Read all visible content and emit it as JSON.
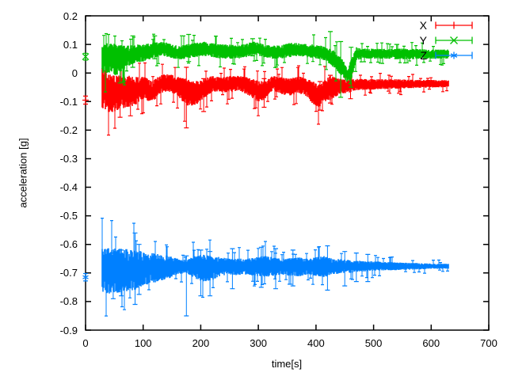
{
  "window": {
    "background": "#ffffff"
  },
  "chart_data": {
    "type": "scatter",
    "style": "points with errorbars",
    "title": "",
    "xlabel": "time[s]",
    "ylabel": "acceleration [g]",
    "xlim": [
      0,
      700
    ],
    "ylim": [
      -0.9,
      0.2
    ],
    "grid": false,
    "legend_position": "top-right-inside",
    "xticks": [
      0,
      100,
      200,
      300,
      400,
      500,
      600,
      700
    ],
    "xtick_labels": [
      "0",
      "100",
      "200",
      "300",
      "400",
      "500",
      "600",
      "700"
    ],
    "yticks": [
      0.2,
      0.1,
      0,
      -0.1,
      -0.2,
      -0.3,
      -0.4,
      -0.5,
      -0.6,
      -0.7,
      -0.8,
      -0.9
    ],
    "ytick_labels": [
      "0.2",
      "0.1",
      "0",
      "-0.1",
      "-0.2",
      "-0.3",
      "-0.4",
      "-0.5",
      "-0.6",
      "-0.7",
      "-0.8",
      "-0.9"
    ],
    "legend": {
      "entries": [
        {
          "label": "X",
          "color": "#ff0000",
          "marker": "plus"
        },
        {
          "label": "Y",
          "color": "#00c000",
          "marker": "cross"
        },
        {
          "label": "Z",
          "color": "#0080ff",
          "marker": "asterisk"
        }
      ]
    },
    "series": [
      {
        "name": "X",
        "color": "#ff0000",
        "marker": "plus",
        "initial_point": {
          "t": 0,
          "v": -0.095,
          "err": 0.014
        },
        "band": [
          [
            28,
            -0.125,
            0.02
          ],
          [
            40,
            -0.14,
            -0.005
          ],
          [
            55,
            -0.135,
            -0.01
          ],
          [
            70,
            -0.12,
            -0.005
          ],
          [
            85,
            -0.115,
            -0.015
          ],
          [
            100,
            -0.09,
            -0.01
          ],
          [
            115,
            -0.105,
            -0.03
          ],
          [
            130,
            -0.07,
            -0.005
          ],
          [
            145,
            -0.065,
            -0.005
          ],
          [
            160,
            -0.08,
            -0.01
          ],
          [
            175,
            -0.115,
            -0.02
          ],
          [
            190,
            -0.115,
            -0.03
          ],
          [
            205,
            -0.09,
            -0.02
          ],
          [
            220,
            -0.065,
            -0.01
          ],
          [
            235,
            -0.065,
            -0.015
          ],
          [
            250,
            -0.07,
            -0.01
          ],
          [
            265,
            -0.06,
            -0.01
          ],
          [
            280,
            -0.075,
            -0.015
          ],
          [
            298,
            -0.1,
            -0.025
          ],
          [
            310,
            -0.095,
            -0.03
          ],
          [
            325,
            -0.06,
            -0.01
          ],
          [
            340,
            -0.075,
            -0.015
          ],
          [
            355,
            -0.08,
            -0.02
          ],
          [
            370,
            -0.07,
            -0.01
          ],
          [
            385,
            -0.085,
            -0.02
          ],
          [
            395,
            -0.11,
            -0.03
          ],
          [
            405,
            -0.125,
            -0.04
          ],
          [
            415,
            -0.1,
            -0.025
          ],
          [
            425,
            -0.095,
            -0.01
          ],
          [
            440,
            -0.075,
            -0.02
          ],
          [
            455,
            -0.07,
            -0.025
          ],
          [
            470,
            -0.06,
            -0.02
          ],
          [
            500,
            -0.058,
            -0.022
          ],
          [
            540,
            -0.055,
            -0.022
          ],
          [
            580,
            -0.052,
            -0.024
          ],
          [
            630,
            -0.05,
            -0.025
          ]
        ],
        "spikes": [
          [
            60,
            -0.155,
            -0.02
          ],
          [
            78,
            -0.15,
            -0.03
          ],
          [
            175,
            -0.192,
            0.02
          ],
          [
            205,
            -0.135,
            -0.02
          ],
          [
            310,
            -0.12,
            -0.02
          ],
          [
            407,
            -0.13,
            -0.03
          ],
          [
            425,
            -0.105,
            -0.008
          ],
          [
            460,
            -0.09,
            0.0
          ]
        ]
      },
      {
        "name": "Y",
        "color": "#00c000",
        "marker": "cross",
        "initial_point": {
          "t": 0,
          "v": 0.057,
          "err": 0.012
        },
        "band": [
          [
            28,
            -0.005,
            0.1
          ],
          [
            40,
            0.0,
            0.105
          ],
          [
            55,
            -0.01,
            0.1
          ],
          [
            70,
            0.02,
            0.095
          ],
          [
            85,
            0.035,
            0.1
          ],
          [
            100,
            0.04,
            0.1
          ],
          [
            115,
            0.05,
            0.105
          ],
          [
            130,
            0.06,
            0.11
          ],
          [
            145,
            0.055,
            0.105
          ],
          [
            160,
            0.045,
            0.095
          ],
          [
            175,
            0.05,
            0.1
          ],
          [
            190,
            0.055,
            0.105
          ],
          [
            205,
            0.06,
            0.11
          ],
          [
            220,
            0.055,
            0.105
          ],
          [
            235,
            0.05,
            0.1
          ],
          [
            250,
            0.05,
            0.1
          ],
          [
            265,
            0.05,
            0.095
          ],
          [
            280,
            0.055,
            0.105
          ],
          [
            293,
            0.065,
            0.11
          ],
          [
            310,
            0.055,
            0.1
          ],
          [
            325,
            0.05,
            0.095
          ],
          [
            340,
            0.05,
            0.1
          ],
          [
            355,
            0.055,
            0.105
          ],
          [
            370,
            0.06,
            0.105
          ],
          [
            385,
            0.055,
            0.1
          ],
          [
            400,
            0.05,
            0.1
          ],
          [
            415,
            0.045,
            0.095
          ],
          [
            430,
            0.02,
            0.08
          ],
          [
            445,
            -0.01,
            0.05
          ],
          [
            455,
            -0.035,
            0.02
          ],
          [
            462,
            -0.02,
            0.05
          ],
          [
            470,
            0.045,
            0.09
          ],
          [
            485,
            0.05,
            0.085
          ],
          [
            520,
            0.05,
            0.085
          ],
          [
            560,
            0.048,
            0.085
          ],
          [
            600,
            0.05,
            0.082
          ],
          [
            630,
            0.05,
            0.082
          ]
        ],
        "spikes": [
          [
            60,
            -0.035,
            0.08
          ],
          [
            66,
            -0.03,
            0.07
          ],
          [
            82,
            0.02,
            0.13
          ],
          [
            120,
            0.05,
            0.13
          ],
          [
            179,
            0.04,
            0.135
          ],
          [
            290,
            0.06,
            0.12
          ],
          [
            425,
            0.05,
            0.145
          ],
          [
            443,
            -0.085,
            0.11
          ],
          [
            461,
            -0.05,
            0.09
          ],
          [
            540,
            0.05,
            0.1
          ]
        ]
      },
      {
        "name": "Z",
        "color": "#0080ff",
        "marker": "asterisk",
        "initial_point": {
          "t": 0,
          "v": -0.715,
          "err": 0.013
        },
        "band": [
          [
            28,
            -0.77,
            -0.615
          ],
          [
            40,
            -0.775,
            -0.61
          ],
          [
            55,
            -0.77,
            -0.615
          ],
          [
            70,
            -0.765,
            -0.615
          ],
          [
            85,
            -0.76,
            -0.62
          ],
          [
            100,
            -0.745,
            -0.625
          ],
          [
            115,
            -0.735,
            -0.63
          ],
          [
            130,
            -0.73,
            -0.635
          ],
          [
            145,
            -0.72,
            -0.64
          ],
          [
            160,
            -0.705,
            -0.65
          ],
          [
            175,
            -0.7,
            -0.655
          ],
          [
            190,
            -0.72,
            -0.64
          ],
          [
            205,
            -0.73,
            -0.635
          ],
          [
            220,
            -0.725,
            -0.64
          ],
          [
            235,
            -0.71,
            -0.645
          ],
          [
            250,
            -0.705,
            -0.65
          ],
          [
            265,
            -0.71,
            -0.65
          ],
          [
            280,
            -0.705,
            -0.65
          ],
          [
            295,
            -0.71,
            -0.645
          ],
          [
            310,
            -0.715,
            -0.64
          ],
          [
            325,
            -0.71,
            -0.645
          ],
          [
            340,
            -0.705,
            -0.65
          ],
          [
            355,
            -0.71,
            -0.648
          ],
          [
            370,
            -0.712,
            -0.645
          ],
          [
            385,
            -0.705,
            -0.65
          ],
          [
            400,
            -0.71,
            -0.645
          ],
          [
            415,
            -0.715,
            -0.64
          ],
          [
            430,
            -0.705,
            -0.65
          ],
          [
            445,
            -0.7,
            -0.652
          ],
          [
            460,
            -0.7,
            -0.655
          ],
          [
            480,
            -0.695,
            -0.658
          ],
          [
            510,
            -0.692,
            -0.66
          ],
          [
            540,
            -0.69,
            -0.663
          ],
          [
            570,
            -0.688,
            -0.665
          ],
          [
            600,
            -0.686,
            -0.667
          ],
          [
            630,
            -0.685,
            -0.668
          ]
        ],
        "spikes": [
          [
            48,
            -0.79,
            -0.63
          ],
          [
            62,
            -0.78,
            -0.62
          ],
          [
            86,
            -0.81,
            -0.56
          ],
          [
            93,
            -0.775,
            -0.6
          ],
          [
            175,
            -0.85,
            -0.64
          ],
          [
            200,
            -0.78,
            -0.62
          ],
          [
            216,
            -0.78,
            -0.625
          ],
          [
            255,
            -0.755,
            -0.615
          ],
          [
            305,
            -0.75,
            -0.61
          ],
          [
            330,
            -0.755,
            -0.615
          ],
          [
            360,
            -0.745,
            -0.62
          ],
          [
            420,
            -0.76,
            -0.605
          ],
          [
            450,
            -0.745,
            -0.625
          ],
          [
            470,
            -0.73,
            -0.63
          ],
          [
            490,
            -0.73,
            -0.635
          ]
        ]
      }
    ]
  }
}
